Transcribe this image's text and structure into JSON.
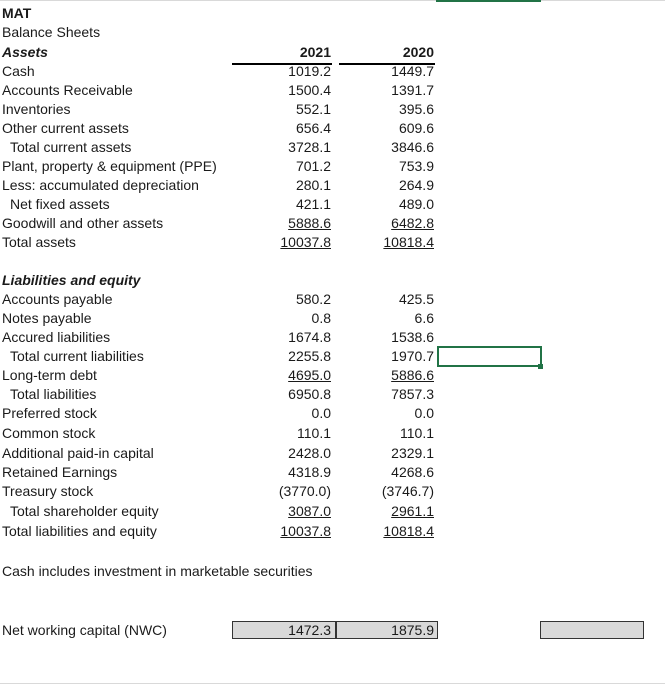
{
  "company": "MAT",
  "sheet_title": "Balance Sheets",
  "years": [
    "2021",
    "2020"
  ],
  "assets_heading": "Assets",
  "assets": [
    {
      "label": "Cash",
      "v2021": "1019.2",
      "v2020": "1449.7"
    },
    {
      "label": "Accounts Receivable",
      "v2021": "1500.4",
      "v2020": "1391.7"
    },
    {
      "label": "Inventories",
      "v2021": "552.1",
      "v2020": "395.6"
    },
    {
      "label": "Other current assets",
      "v2021": "656.4",
      "v2020": "609.6"
    },
    {
      "label": "Total current assets",
      "v2021": "3728.1",
      "v2020": "3846.6"
    },
    {
      "label": "Plant, property & equipment (PPE)",
      "v2021": "701.2",
      "v2020": "753.9"
    },
    {
      "label": "Less: accumulated depreciation",
      "v2021": "280.1",
      "v2020": "264.9"
    },
    {
      "label": "Net fixed assets",
      "v2021": "421.1",
      "v2020": "489.0"
    },
    {
      "label": "Goodwill and other assets",
      "v2021": "5888.6",
      "v2020": "6482.8"
    },
    {
      "label": "Total assets",
      "v2021": "10037.8",
      "v2020": "10818.4"
    }
  ],
  "liabilities_heading": "Liabilities and equity",
  "liabilities": [
    {
      "label": "Accounts payable",
      "v2021": "580.2",
      "v2020": "425.5"
    },
    {
      "label": "Notes payable",
      "v2021": "0.8",
      "v2020": "6.6"
    },
    {
      "label": "Accured liabilities",
      "v2021": "1674.8",
      "v2020": "1538.6"
    },
    {
      "label": "Total current liabilities",
      "v2021": "2255.8",
      "v2020": "1970.7"
    },
    {
      "label": "Long-term debt",
      "v2021": "4695.0",
      "v2020": "5886.6"
    },
    {
      "label": "Total liabilities",
      "v2021": "6950.8",
      "v2020": "7857.3"
    },
    {
      "label": "Preferred stock",
      "v2021": "0.0",
      "v2020": "0.0"
    },
    {
      "label": "Common stock",
      "v2021": "110.1",
      "v2020": "110.1"
    },
    {
      "label": "Additional paid-in capital",
      "v2021": "2428.0",
      "v2020": "2329.1"
    },
    {
      "label": "Retained Earnings",
      "v2021": "4318.9",
      "v2020": "4268.6"
    },
    {
      "label": "Treasury stock",
      "v2021": "(3770.0)",
      "v2020": "(3746.7)"
    },
    {
      "label": "Total shareholder equity",
      "v2021": "3087.0",
      "v2020": "2961.1"
    },
    {
      "label": "Total liabilities and equity",
      "v2021": "10037.8",
      "v2020": "10818.4"
    }
  ],
  "note": "Cash includes investment in marketable securities",
  "nwc": {
    "label": "Net working capital (NWC)",
    "v2021": "1472.3",
    "v2020": "1875.9"
  },
  "colors": {
    "selection": "#217346",
    "input_fill": "#d9d9d9"
  }
}
